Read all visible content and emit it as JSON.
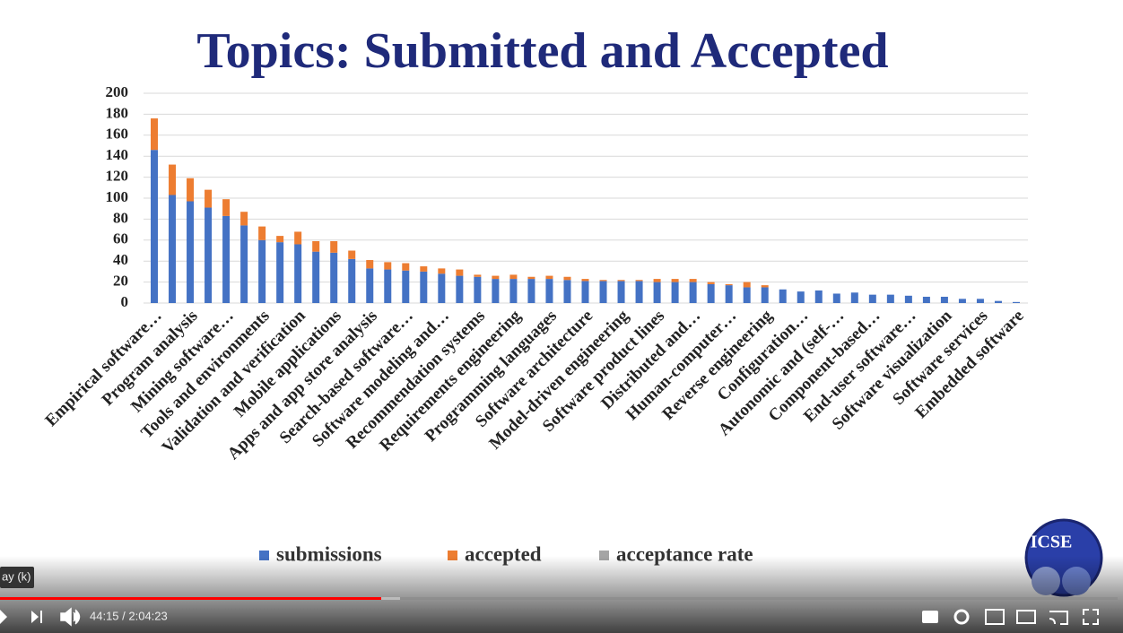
{
  "chart_data": {
    "type": "bar",
    "stacked": true,
    "title": "Topics: Submitted and Accepted",
    "categories": [
      "Empirical software…",
      null,
      "Program analysis",
      null,
      "Mining software…",
      null,
      "Tools and environments",
      null,
      "Validation and verification",
      null,
      "Mobile applications",
      null,
      "Apps and app store analysis",
      null,
      "Search-based software…",
      null,
      "Software modeling and…",
      null,
      "Recommendation systems",
      null,
      "Requirements engineering",
      null,
      "Programming languages",
      null,
      "Software architecture",
      null,
      "Model-driven engineering",
      null,
      "Software product lines",
      null,
      "Distributed and…",
      null,
      "Human-computer…",
      null,
      "Reverse engineering",
      null,
      "Configuration…",
      null,
      "Autonomic and (self-…",
      null,
      "Component-based…",
      null,
      "End-user software…",
      null,
      "Software visualization",
      null,
      "Software services",
      null,
      "Embedded software"
    ],
    "series": [
      {
        "name": "submissions",
        "color": "#4472c4",
        "values": [
          146,
          103,
          97,
          91,
          83,
          74,
          60,
          58,
          56,
          49,
          48,
          42,
          33,
          32,
          31,
          30,
          28,
          26,
          25,
          23,
          23,
          23,
          23,
          22,
          21,
          21,
          21,
          21,
          20,
          20,
          20,
          18,
          17,
          15,
          15,
          13,
          11,
          12,
          9,
          10,
          8,
          8,
          7,
          6,
          6,
          4,
          4,
          2,
          1
        ]
      },
      {
        "name": "accepted",
        "color": "#ed7d31",
        "values": [
          30,
          29,
          22,
          17,
          16,
          13,
          13,
          6,
          12,
          10,
          11,
          8,
          8,
          7,
          7,
          5,
          5,
          6,
          2,
          3,
          4,
          2,
          3,
          3,
          2,
          1,
          1,
          1,
          3,
          3,
          3,
          2,
          1,
          5,
          2,
          0,
          0,
          0,
          0,
          0,
          0,
          0,
          0,
          0,
          0,
          0,
          0,
          0,
          0
        ]
      },
      {
        "name": "acceptance rate",
        "color": "#a5a5a5",
        "values": [
          null,
          null,
          null,
          null,
          null,
          null,
          null,
          null,
          null,
          null,
          null,
          null,
          null,
          null,
          null,
          null,
          null,
          null,
          null,
          null,
          null,
          null,
          null,
          null,
          null,
          null,
          null,
          null,
          null,
          null,
          null,
          null,
          null,
          null,
          null,
          null,
          null,
          null,
          null,
          null,
          null,
          null,
          null,
          null,
          null,
          null,
          null,
          null,
          null
        ]
      }
    ],
    "ylim": [
      0,
      200
    ],
    "yticks": [
      0,
      20,
      40,
      60,
      80,
      100,
      120,
      140,
      160,
      180,
      200
    ],
    "grid": true,
    "legend": "bottom"
  },
  "player": {
    "tooltip": "ay (k)",
    "time": "44:15 / 2:04:23",
    "logo": "ICSE"
  }
}
